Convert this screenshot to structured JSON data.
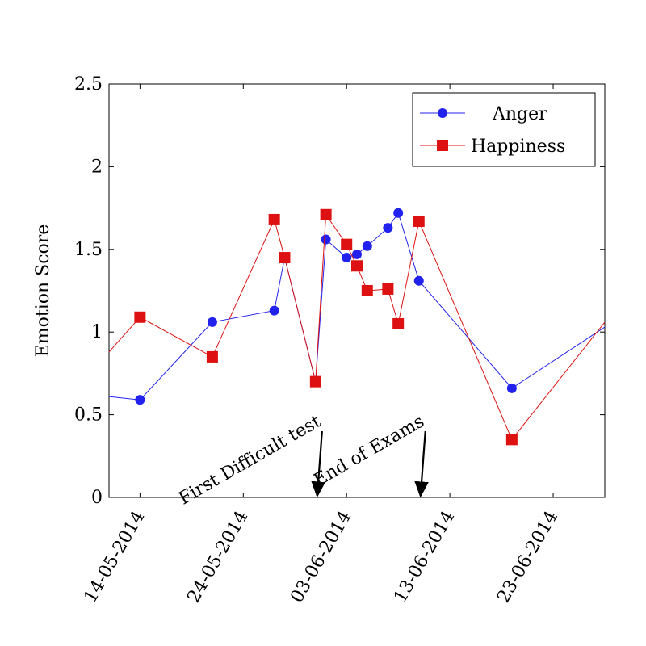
{
  "chart_data": {
    "type": "line",
    "xlabel": "",
    "ylabel": "Emotion Score",
    "xlim": [
      "2014-05-11",
      "2014-06-28"
    ],
    "ylim": [
      0,
      2.5
    ],
    "yticks": [
      "0",
      "0.5",
      "1",
      "1.5",
      "2",
      "2.5"
    ],
    "xticks": [
      {
        "date": "2014-05-14",
        "label": "14-05-2014"
      },
      {
        "date": "2014-05-24",
        "label": "24-05-2014"
      },
      {
        "date": "2014-06-03",
        "label": "03-06-2014"
      },
      {
        "date": "2014-06-13",
        "label": "13-06-2014"
      },
      {
        "date": "2014-06-23",
        "label": "23-06-2014"
      }
    ],
    "grid": false,
    "legend_position": "top-right",
    "series": [
      {
        "name": "Anger",
        "color": "#2222ee",
        "marker": "circle",
        "points": [
          {
            "x": "2014-05-11",
            "y": 0.61
          },
          {
            "x": "2014-05-14",
            "y": 0.59
          },
          {
            "x": "2014-05-21",
            "y": 1.06
          },
          {
            "x": "2014-05-27",
            "y": 1.13
          },
          {
            "x": "2014-05-28",
            "y": 1.45
          },
          {
            "x": "2014-05-31",
            "y": 0.7
          },
          {
            "x": "2014-06-01",
            "y": 1.56
          },
          {
            "x": "2014-06-03",
            "y": 1.45
          },
          {
            "x": "2014-06-04",
            "y": 1.47
          },
          {
            "x": "2014-06-05",
            "y": 1.52
          },
          {
            "x": "2014-06-07",
            "y": 1.63
          },
          {
            "x": "2014-06-08",
            "y": 1.72
          },
          {
            "x": "2014-06-10",
            "y": 1.31
          },
          {
            "x": "2014-06-19",
            "y": 0.66
          },
          {
            "x": "2014-06-28",
            "y": 1.03
          }
        ]
      },
      {
        "name": "Happiness",
        "color": "#dd1111",
        "marker": "square",
        "points": [
          {
            "x": "2014-05-11",
            "y": 0.88
          },
          {
            "x": "2014-05-14",
            "y": 1.09
          },
          {
            "x": "2014-05-21",
            "y": 0.85
          },
          {
            "x": "2014-05-27",
            "y": 1.68
          },
          {
            "x": "2014-05-28",
            "y": 1.45
          },
          {
            "x": "2014-05-31",
            "y": 0.7
          },
          {
            "x": "2014-06-01",
            "y": 1.71
          },
          {
            "x": "2014-06-03",
            "y": 1.53
          },
          {
            "x": "2014-06-04",
            "y": 1.4
          },
          {
            "x": "2014-06-05",
            "y": 1.25
          },
          {
            "x": "2014-06-07",
            "y": 1.26
          },
          {
            "x": "2014-06-08",
            "y": 1.05
          },
          {
            "x": "2014-06-10",
            "y": 1.67
          },
          {
            "x": "2014-06-19",
            "y": 0.35
          },
          {
            "x": "2014-06-28",
            "y": 1.06
          }
        ]
      }
    ],
    "annotations": [
      {
        "text": "First Difficult test",
        "x": "2014-05-31"
      },
      {
        "text": "End of Exams",
        "x": "2014-06-10"
      }
    ]
  }
}
